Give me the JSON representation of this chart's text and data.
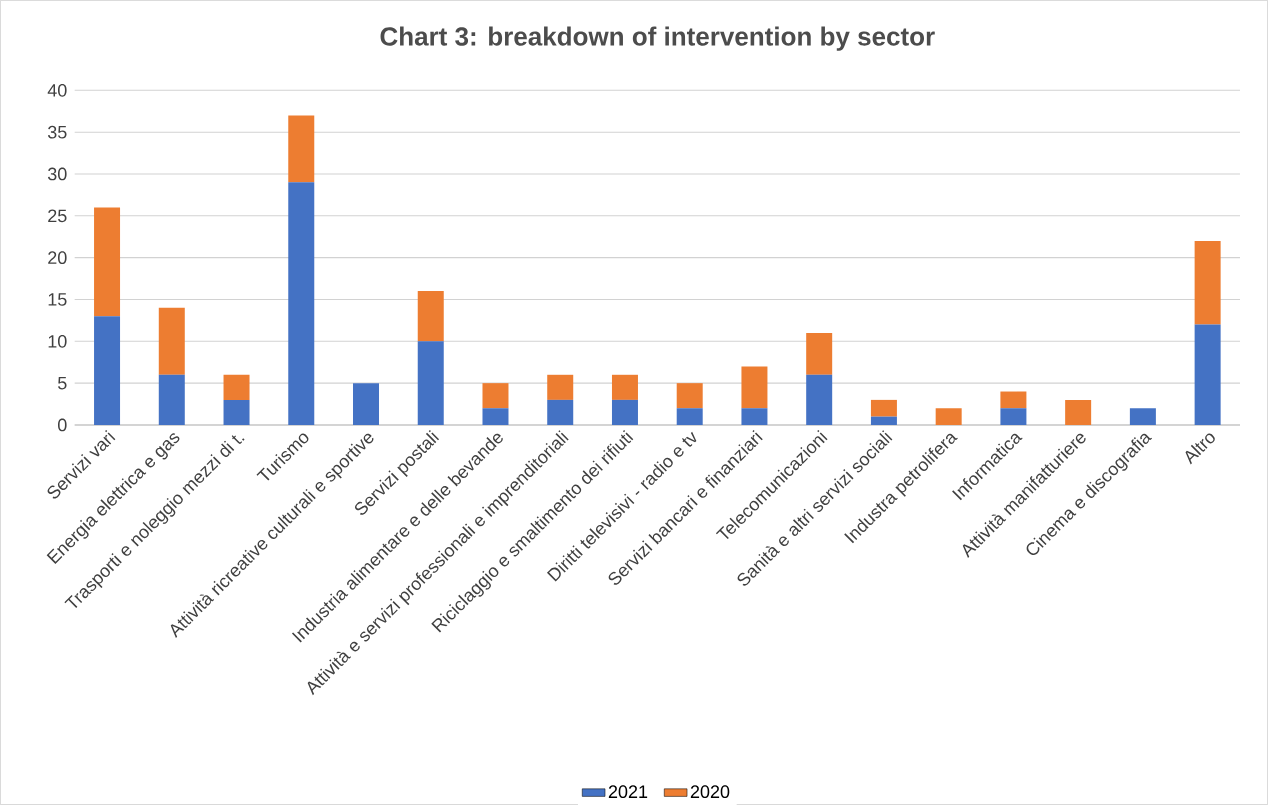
{
  "chart_data": {
    "type": "bar",
    "title": "Chart 3: breakdown of intervention by sector",
    "categories": [
      "Servizi vari",
      "Energia elettrica e gas",
      "Trasporti e noleggio mezzi di t.",
      "Turismo",
      "Attività ricreative culturali e sportive",
      "Servizi postali",
      "Industria alimentare e delle bevande",
      "Attività e servizi professionali e imprenditoriali",
      "Riciclaggio e smaltimento dei rifiuti",
      "Diritti televisivi - radio e tv",
      "Servizi bancari e finanziari",
      "Telecomunicazioni",
      "Sanità e altri servizi sociali",
      "Industra petrolifera",
      "Informatica",
      "Attività manifatturiere",
      "Cinema e discografia",
      "Altro"
    ],
    "series": [
      {
        "name": "2021",
        "color": "#4472c4",
        "values": [
          13,
          6,
          3,
          29,
          5,
          10,
          2,
          3,
          3,
          2,
          2,
          6,
          1,
          0,
          2,
          0,
          2,
          12
        ]
      },
      {
        "name": "2020",
        "color": "#ed7d31",
        "values": [
          13,
          8,
          3,
          8,
          0,
          6,
          3,
          3,
          3,
          3,
          5,
          5,
          2,
          2,
          2,
          3,
          0,
          10
        ]
      }
    ],
    "stacked": true,
    "ylim": [
      0,
      40
    ],
    "yticks": [
      0,
      5,
      10,
      15,
      20,
      25,
      30,
      35,
      40
    ],
    "grid": "y",
    "legend": "bottom"
  }
}
